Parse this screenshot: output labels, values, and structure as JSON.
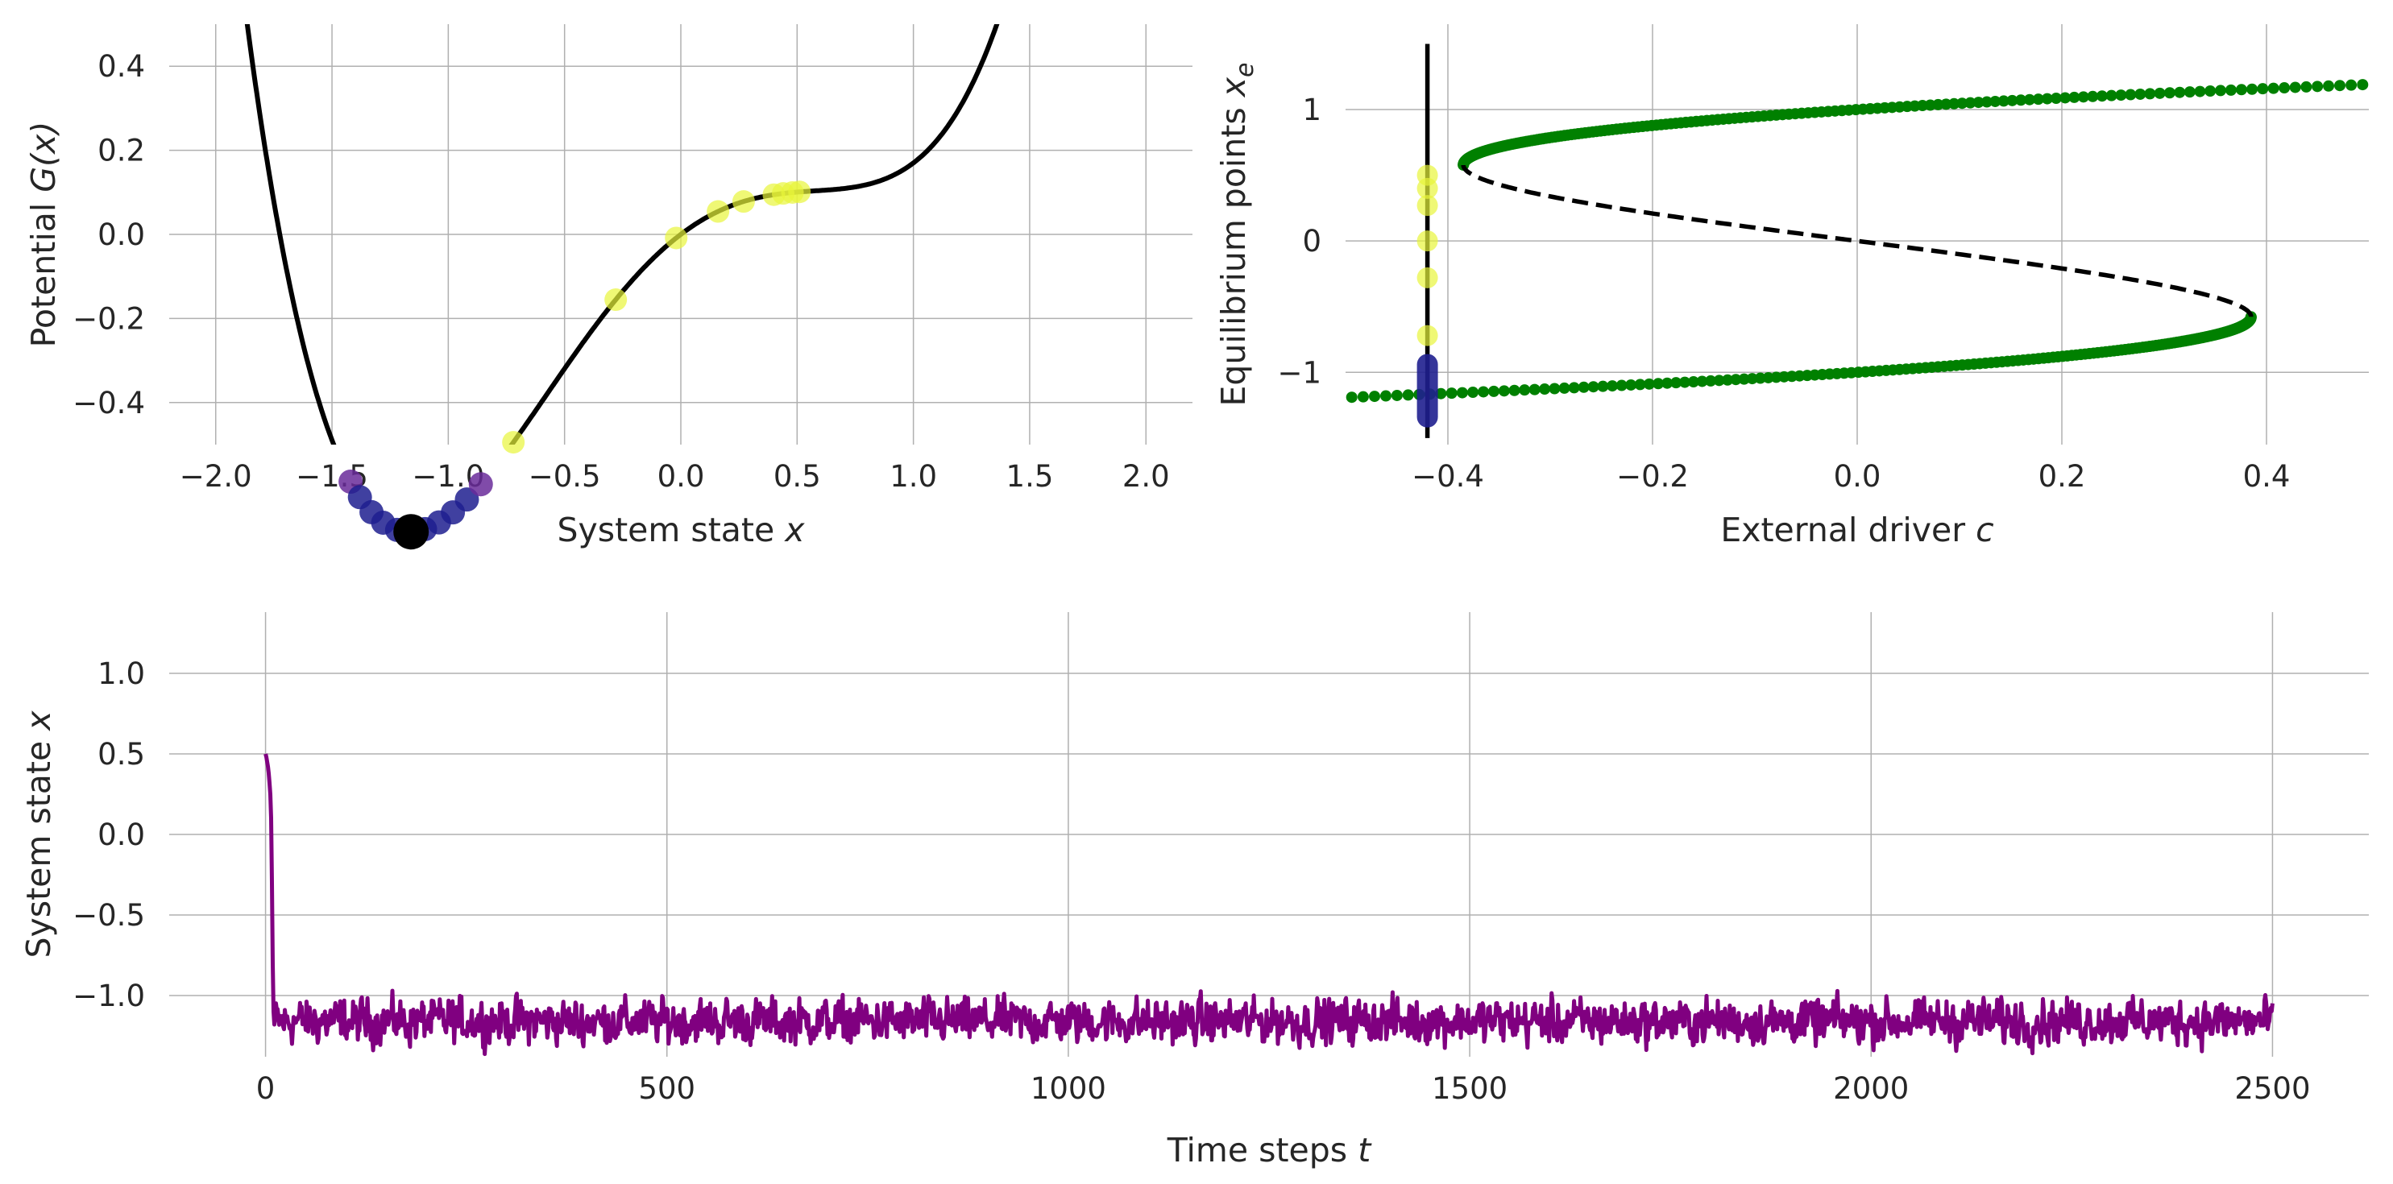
{
  "chart_data": [
    {
      "id": "potential",
      "type": "line",
      "xlabel": "System state",
      "xlabel_var": "x",
      "ylabel": "Potential",
      "ylabel_var": "G(x)",
      "xlim": [
        -2.2,
        2.2
      ],
      "ylim": [
        -0.5,
        0.5
      ],
      "xticks": [
        -2.0,
        -1.5,
        -1.0,
        -0.5,
        0.0,
        0.5,
        1.0,
        1.5,
        2.0
      ],
      "xtick_labels": [
        "−2.0",
        "−1.5",
        "−1.0",
        "−0.5",
        "0.0",
        "0.5",
        "1.0",
        "1.5",
        "2.0"
      ],
      "yticks": [
        -0.4,
        -0.2,
        0.0,
        0.2,
        0.4
      ],
      "ytick_labels": [
        "−0.4",
        "−0.2",
        "0.0",
        "0.2",
        "0.4"
      ],
      "grid": true,
      "curve": {
        "formula": "x^4/4 - x^2/2 - c*x",
        "c": -0.42,
        "color": "#000000"
      },
      "yellow_points_x": [
        -0.72,
        -0.28,
        -0.02,
        0.16,
        0.27,
        0.4,
        0.44,
        0.48,
        0.51
      ],
      "purple_points_x": [
        -1.42,
        -1.38,
        -1.33,
        -1.28,
        -1.22,
        -1.16,
        -1.1,
        -1.04,
        -0.98,
        -0.92,
        -0.86
      ],
      "current_state_x": -1.16,
      "colors": {
        "yellow": "#e8f53a",
        "purple": "#6a2c9a",
        "blue": "#1f1f8f",
        "marker": "#000000"
      }
    },
    {
      "id": "bifurcation",
      "type": "scatter",
      "xlabel": "External driver",
      "xlabel_var": "c",
      "ylabel": "Equilibrium points",
      "ylabel_var": "x",
      "ylabel_sub": "e",
      "xlim": [
        -0.5,
        0.5
      ],
      "ylim": [
        -1.55,
        1.65
      ],
      "xticks": [
        -0.4,
        -0.2,
        0.0,
        0.2,
        0.4
      ],
      "xtick_labels": [
        "−0.4",
        "−0.2",
        "0.0",
        "0.2",
        "0.4"
      ],
      "yticks": [
        -1,
        0,
        1
      ],
      "ytick_labels": [
        "−1",
        "0",
        "1"
      ],
      "grid": true,
      "stable_branch_color": "#008000",
      "unstable_branch_color": "#000000",
      "current_c": -0.42,
      "vertical_line_y": [
        -1.5,
        1.5
      ],
      "yellow_points_y": [
        0.5,
        0.4,
        0.27,
        0.0,
        -0.28,
        -0.72
      ],
      "state_range_y": [
        -1.42,
        -0.86
      ]
    },
    {
      "id": "timeseries",
      "type": "line",
      "xlabel": "Time steps",
      "xlabel_var": "t",
      "ylabel": "System state",
      "ylabel_var": "x",
      "xlim": [
        -120,
        2620
      ],
      "ylim": [
        -1.38,
        1.38
      ],
      "xticks": [
        0,
        500,
        1000,
        1500,
        2000,
        2500
      ],
      "xtick_labels": [
        "0",
        "500",
        "1000",
        "1500",
        "2000",
        "2500"
      ],
      "yticks": [
        -1.0,
        -0.5,
        0.0,
        0.5,
        1.0
      ],
      "ytick_labels": [
        "−1.0",
        "−0.5",
        "0.0",
        "0.5",
        "1.0"
      ],
      "grid": true,
      "series": [
        {
          "color": "#800080",
          "n_steps": 2500,
          "initial_values": [
            0.5,
            0.48,
            0.45,
            0.42,
            0.38,
            0.32,
            0.25,
            0.1,
            -0.3,
            -0.8,
            -1.1,
            -1.18
          ],
          "mean": -1.16,
          "noise_amplitude": 0.09
        }
      ]
    }
  ]
}
